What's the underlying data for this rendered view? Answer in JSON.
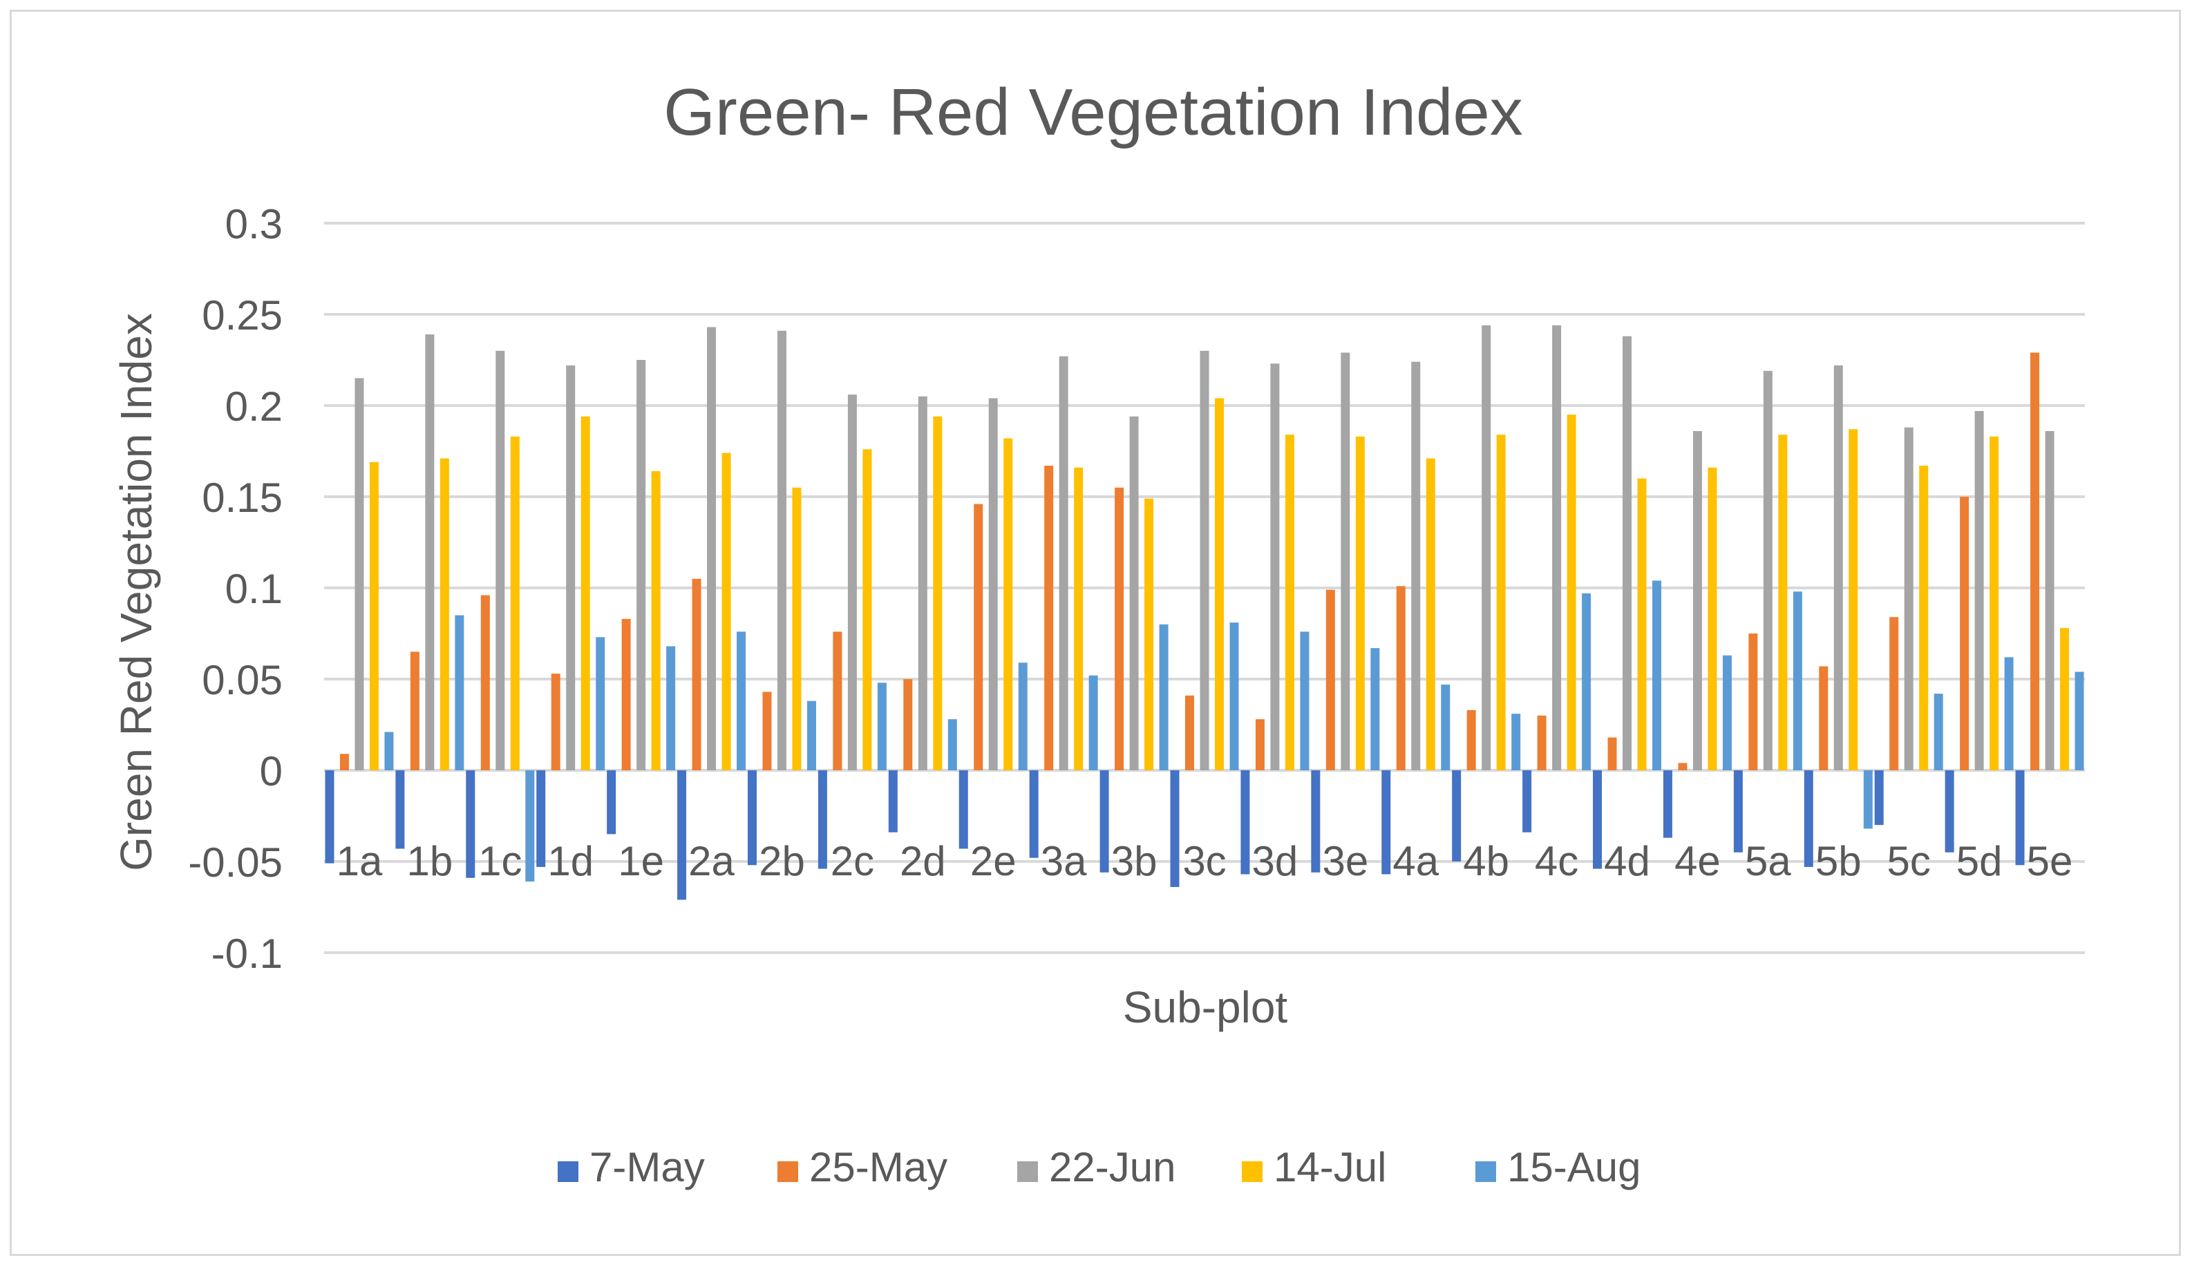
{
  "chart_data": {
    "type": "bar",
    "title": "Green- Red Vegetation Index",
    "xlabel": "Sub-plot",
    "ylabel": "Green Red Vegetation Index",
    "ylim": [
      -0.1,
      0.3
    ],
    "yticks": [
      -0.1,
      -0.05,
      0,
      0.05,
      0.1,
      0.15,
      0.2,
      0.25,
      0.3
    ],
    "ytick_labels": [
      "-0.1",
      "-0.05",
      "0",
      "0.05",
      "0.1",
      "0.15",
      "0.2",
      "0.25",
      "0.3"
    ],
    "grid": true,
    "legend_position": "bottom",
    "categories": [
      "1a",
      "1b",
      "1c",
      "1d",
      "1e",
      "2a",
      "2b",
      "2c",
      "2d",
      "2e",
      "3a",
      "3b",
      "3c",
      "3d",
      "3e",
      "4a",
      "4b",
      "4c",
      "4d",
      "4e",
      "5a",
      "5b",
      "5c",
      "5d",
      "5e"
    ],
    "series": [
      {
        "name": "7-May",
        "color": "#4472c4",
        "values": [
          -0.051,
          -0.043,
          -0.059,
          -0.053,
          -0.035,
          -0.071,
          -0.052,
          -0.054,
          -0.034,
          -0.043,
          -0.048,
          -0.056,
          -0.064,
          -0.057,
          -0.056,
          -0.057,
          -0.05,
          -0.034,
          -0.054,
          -0.037,
          -0.045,
          -0.053,
          -0.03,
          -0.045,
          -0.052
        ]
      },
      {
        "name": "25-May",
        "color": "#ed7d31",
        "values": [
          0.009,
          0.065,
          0.096,
          0.053,
          0.083,
          0.105,
          0.043,
          0.076,
          0.05,
          0.146,
          0.167,
          0.155,
          0.041,
          0.028,
          0.099,
          0.101,
          0.033,
          0.03,
          0.018,
          0.004,
          0.075,
          0.057,
          0.084,
          0.15,
          0.229
        ]
      },
      {
        "name": "22-Jun",
        "color": "#a5a5a5",
        "values": [
          0.215,
          0.239,
          0.23,
          0.222,
          0.225,
          0.243,
          0.241,
          0.206,
          0.205,
          0.204,
          0.227,
          0.194,
          0.23,
          0.223,
          0.229,
          0.224,
          0.244,
          0.244,
          0.238,
          0.186,
          0.219,
          0.222,
          0.188,
          0.197,
          0.186
        ]
      },
      {
        "name": "14-Jul",
        "color": "#ffc000",
        "values": [
          0.169,
          0.171,
          0.183,
          0.194,
          0.164,
          0.174,
          0.155,
          0.176,
          0.194,
          0.182,
          0.166,
          0.149,
          0.204,
          0.184,
          0.183,
          0.171,
          0.184,
          0.195,
          0.16,
          0.166,
          0.184,
          0.187,
          0.167,
          0.183,
          0.078
        ]
      },
      {
        "name": "15-Aug",
        "color": "#5b9bd5",
        "values": [
          0.021,
          0.085,
          -0.061,
          0.073,
          0.068,
          0.076,
          0.038,
          0.048,
          0.028,
          0.059,
          0.052,
          0.08,
          0.081,
          0.076,
          0.067,
          0.047,
          0.031,
          0.097,
          0.104,
          0.063,
          0.098,
          -0.032,
          0.042,
          0.062,
          0.054
        ]
      }
    ]
  }
}
